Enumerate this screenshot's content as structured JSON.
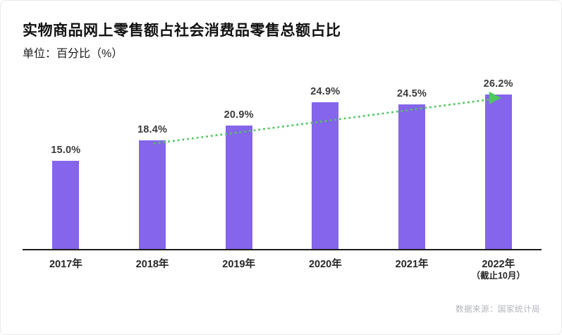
{
  "chart": {
    "title": "实物商品网上零售额占社会消费品零售总额占比",
    "unit_label": "单位：百分比（%）",
    "source": "数据来源：国家统计局"
  },
  "chart_data": {
    "type": "bar",
    "title": "实物商品网上零售额占社会消费品零售总额占比",
    "xlabel": "",
    "ylabel": "百分比（%）",
    "ylim": [
      0,
      28
    ],
    "grid": false,
    "legend": "none",
    "categories": [
      "2017年",
      "2018年",
      "2019年",
      "2020年",
      "2021年",
      "2022年（截止10月）"
    ],
    "x_ticks": [
      {
        "label": "2017年",
        "sublabel": ""
      },
      {
        "label": "2018年",
        "sublabel": ""
      },
      {
        "label": "2019年",
        "sublabel": ""
      },
      {
        "label": "2020年",
        "sublabel": ""
      },
      {
        "label": "2021年",
        "sublabel": ""
      },
      {
        "label": "2022年",
        "sublabel": "（截止10月）"
      }
    ],
    "values": [
      15.0,
      18.4,
      20.9,
      24.9,
      24.5,
      26.2
    ],
    "value_labels": [
      "15.0%",
      "18.4%",
      "20.9%",
      "24.9%",
      "24.5%",
      "26.2%"
    ],
    "colors": {
      "bar": "#8565EB",
      "trend": "#4FC75F",
      "axis": "#1d1d1f",
      "value_label": "#3b3b3b"
    },
    "trend_line": {
      "style": "dotted",
      "color": "#4FC75F",
      "from_category": "2018年",
      "to_category": "2022年（截止10月）",
      "arrow": true
    }
  }
}
